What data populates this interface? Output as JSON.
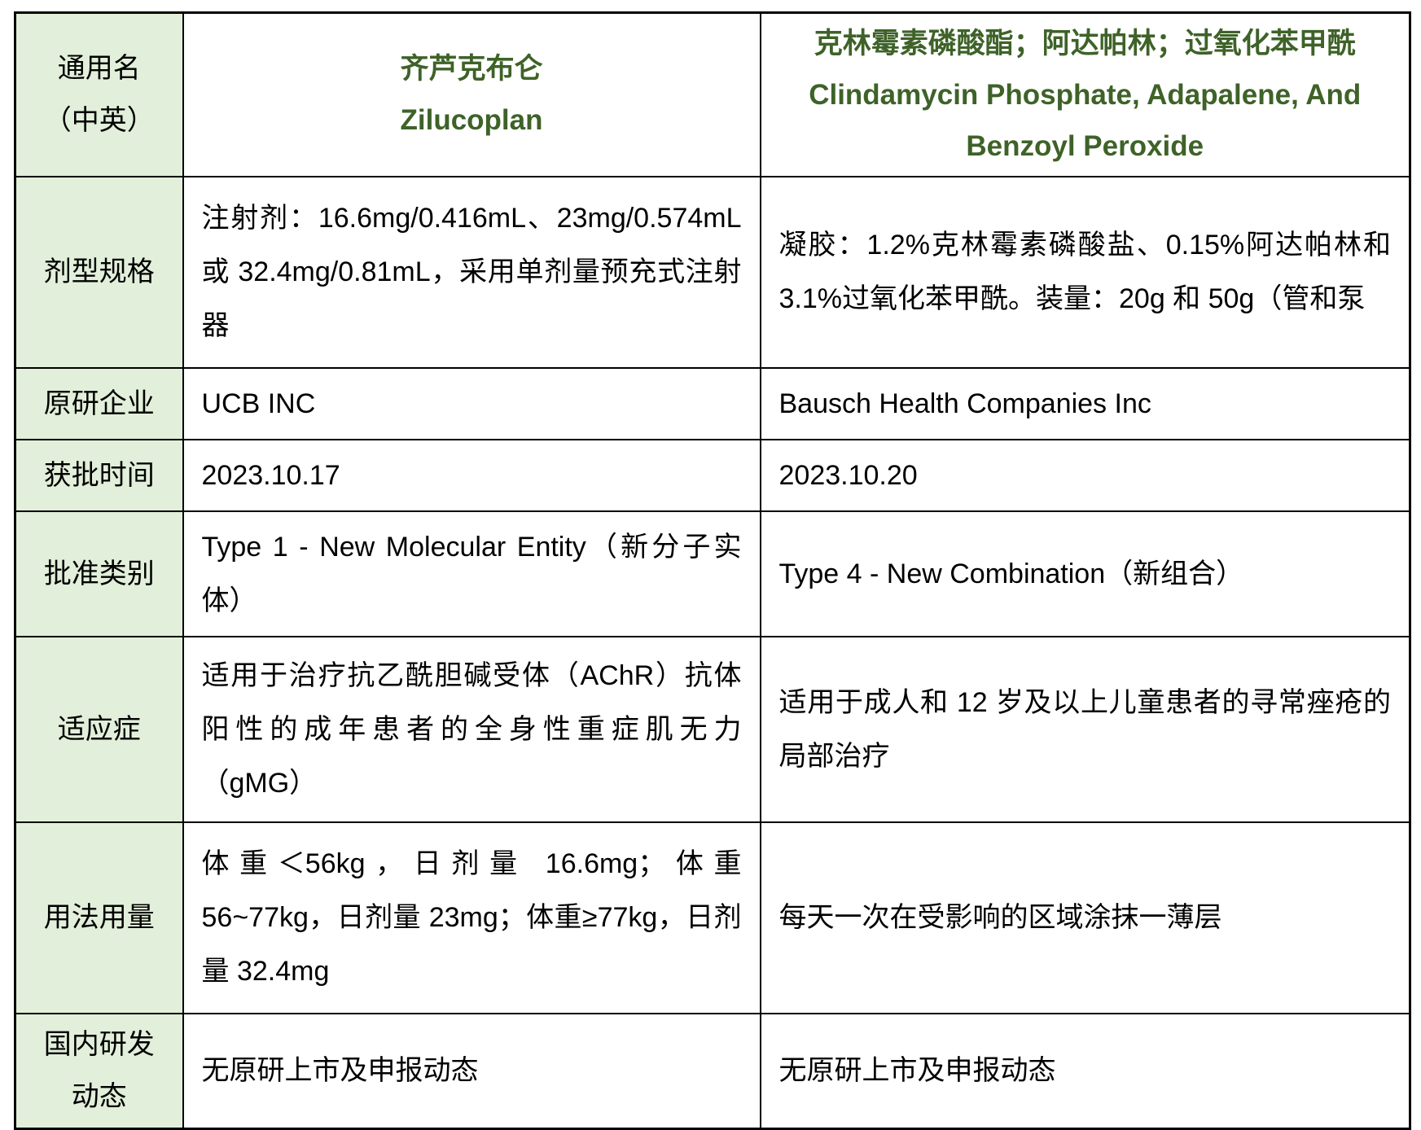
{
  "colors": {
    "accent_green": "#3e6228",
    "label_bg": "#e2efda",
    "border": "#000000"
  },
  "table": {
    "generic_name": {
      "label_line1": "通用名",
      "label_line2": "（中英）",
      "drug1_cn": "齐芦克布仑",
      "drug1_en": "Zilucoplan",
      "drug2_cn": "克林霉素磷酸酯；阿达帕林；过氧化苯甲酰",
      "drug2_en_line1": "Clindamycin Phosphate, Adapalene, And",
      "drug2_en_line2": "Benzoyl Peroxide"
    },
    "dosage_form": {
      "label": "剂型规格",
      "drug1": "注射剂：16.6mg/0.416mL、23mg/0.574mL 或 32.4mg/0.81mL，采用单剂量预充式注射器",
      "drug2": "凝胶：1.2%克林霉素磷酸盐、0.15%阿达帕林和 3.1%过氧化苯甲酰。装量：20g 和 50g（管和泵"
    },
    "originator": {
      "label": "原研企业",
      "drug1": "UCB INC",
      "drug2": "Bausch Health Companies Inc"
    },
    "approval_date": {
      "label": "获批时间",
      "drug1": "2023.10.17",
      "drug2": "2023.10.20"
    },
    "approval_category": {
      "label": "批准类别",
      "drug1": "Type 1 - New Molecular Entity（新分子实体）",
      "drug2": "Type 4 - New Combination（新组合）"
    },
    "indication": {
      "label": "适应症",
      "drug1": "适用于治疗抗乙酰胆碱受体（AChR）抗体阳性的成年患者的全身性重症肌无力（gMG）",
      "drug2": "适用于成人和 12 岁及以上儿童患者的寻常痤疮的局部治疗"
    },
    "dosage_usage": {
      "label": "用法用量",
      "drug1": "体重＜56kg，日剂量 16.6mg；体重 56~77kg，日剂量 23mg；体重≥77kg，日剂量 32.4mg",
      "drug2": "每天一次在受影响的区域涂抹一薄层"
    },
    "domestic_rd": {
      "label_line1": "国内研发",
      "label_line2": "动态",
      "drug1": "无原研上市及申报动态",
      "drug2": "无原研上市及申报动态"
    }
  }
}
